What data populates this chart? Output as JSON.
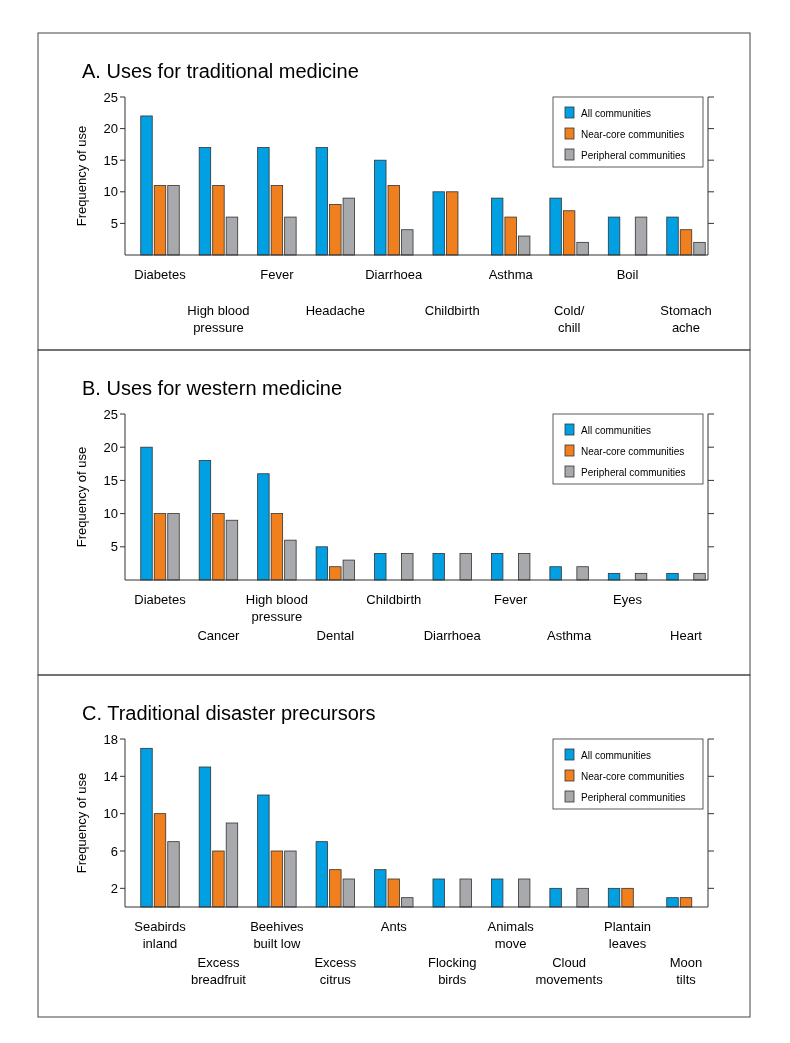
{
  "chart_data": [
    {
      "type": "bar",
      "title": "A.  Uses for traditional medicine",
      "ylabel": "Frequency of use",
      "categories": [
        "Diabetes",
        "High blood\npressure",
        "Fever",
        "Headache",
        "Diarrhoea",
        "Childbirth",
        "Asthma",
        "Cold/\nchill",
        "Boil",
        "Stomach\nache"
      ],
      "ylim": [
        0,
        25
      ],
      "yticks": [
        5,
        10,
        15,
        20,
        25
      ],
      "legend": "top right",
      "series": [
        {
          "name": "All communities",
          "color": "#00a0e3",
          "values": [
            22,
            17,
            17,
            17,
            15,
            10,
            9,
            9,
            6,
            6
          ]
        },
        {
          "name": "Near-core communities",
          "color": "#f07f1e",
          "values": [
            11,
            11,
            11,
            8,
            11,
            10,
            6,
            7,
            null,
            4
          ]
        },
        {
          "name": "Peripheral communities",
          "color": "#a7a9ac",
          "values": [
            11,
            6,
            6,
            9,
            4,
            null,
            3,
            2,
            6,
            2
          ]
        }
      ]
    },
    {
      "type": "bar",
      "title": "B.  Uses for western medicine",
      "ylabel": "Frequency of use",
      "categories": [
        "Diabetes",
        "Cancer",
        "High blood\npressure",
        "Dental",
        "Childbirth",
        "Diarrhoea",
        "Fever",
        "Asthma",
        "Eyes",
        "Heart"
      ],
      "ylim": [
        0,
        25
      ],
      "yticks": [
        5,
        10,
        15,
        20,
        25
      ],
      "legend": "top right",
      "series": [
        {
          "name": "All communities",
          "color": "#00a0e3",
          "values": [
            20,
            18,
            16,
            5,
            4,
            4,
            4,
            2,
            1,
            1
          ]
        },
        {
          "name": "Near-core communities",
          "color": "#f07f1e",
          "values": [
            10,
            10,
            10,
            2,
            null,
            null,
            null,
            null,
            null,
            null
          ]
        },
        {
          "name": "Peripheral communities",
          "color": "#a7a9ac",
          "values": [
            10,
            9,
            6,
            3,
            4,
            4,
            4,
            2,
            1,
            1
          ]
        }
      ]
    },
    {
      "type": "bar",
      "title": "C.  Traditional disaster precursors",
      "ylabel": "Frequency of use",
      "categories": [
        "Seabirds\ninland",
        "Excess\nbreadfruit",
        "Beehives\nbuilt low",
        "Excess\ncitrus",
        "Ants",
        "Flocking\nbirds",
        "Animals\nmove",
        "Cloud\nmovements",
        "Plantain\nleaves",
        "Moon\ntilts"
      ],
      "ylim": [
        0,
        18
      ],
      "yticks": [
        2,
        6,
        10,
        14,
        18
      ],
      "legend": "top right",
      "series": [
        {
          "name": "All communities",
          "color": "#00a0e3",
          "values": [
            17,
            15,
            12,
            7,
            4,
            3,
            3,
            2,
            2,
            1
          ]
        },
        {
          "name": "Near-core communities",
          "color": "#f07f1e",
          "values": [
            10,
            6,
            6,
            4,
            3,
            null,
            null,
            null,
            2,
            1
          ]
        },
        {
          "name": "Peripheral communities",
          "color": "#a7a9ac",
          "values": [
            7,
            9,
            6,
            3,
            1,
            3,
            3,
            2,
            null,
            null
          ]
        }
      ]
    }
  ]
}
